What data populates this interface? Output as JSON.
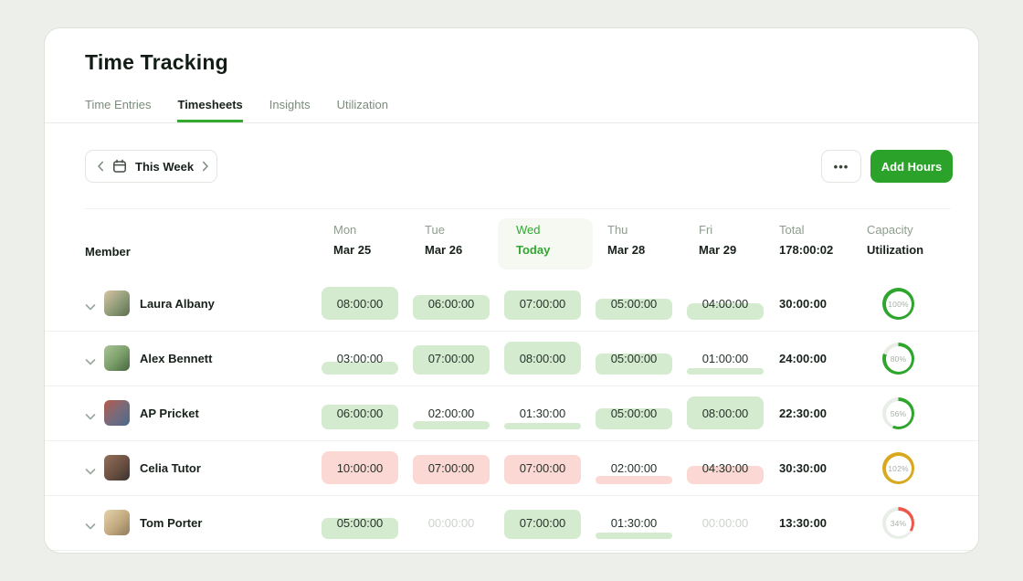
{
  "page": {
    "title": "Time Tracking"
  },
  "tabs": [
    {
      "label": "Time Entries",
      "active": false
    },
    {
      "label": "Timesheets",
      "active": true
    },
    {
      "label": "Insights",
      "active": false
    },
    {
      "label": "Utilization",
      "active": false
    }
  ],
  "toolbar": {
    "week_label": "This Week",
    "more_label": "•••",
    "add_hours_label": "Add Hours"
  },
  "colors": {
    "accent_green": "#2ba32b",
    "cell_green": "#d4ebcf",
    "cell_red": "#fbd8d3",
    "ring_green": "#2ea52c",
    "ring_gold": "#d8a81e",
    "ring_red": "#ee584b",
    "ring_track": "#e9ede8"
  },
  "table": {
    "member_header": "Member",
    "day_columns": [
      {
        "day": "Mon",
        "date": "Mar 25",
        "today": false
      },
      {
        "day": "Tue",
        "date": "Mar 26",
        "today": false
      },
      {
        "day": "Wed",
        "date": "Today",
        "today": true
      },
      {
        "day": "Thu",
        "date": "Mar 28",
        "today": false
      },
      {
        "day": "Fri",
        "date": "Mar 29",
        "today": false
      }
    ],
    "total_header": {
      "label": "Total",
      "value": "178:00:02"
    },
    "capacity_header": {
      "label": "Capacity",
      "value": "Utilization"
    },
    "rows": [
      {
        "name": "Laura Albany",
        "cells": [
          {
            "value": "08:00:00",
            "fill_percent": 100,
            "tone": "green"
          },
          {
            "value": "06:00:00",
            "fill_percent": 75,
            "tone": "green"
          },
          {
            "value": "07:00:00",
            "fill_percent": 87.5,
            "tone": "green"
          },
          {
            "value": "05:00:00",
            "fill_percent": 62.5,
            "tone": "green"
          },
          {
            "value": "04:00:00",
            "fill_percent": 50,
            "tone": "green"
          }
        ],
        "total": "30:00:00",
        "utilization": {
          "label": "100%",
          "percent": 100,
          "status": "ok"
        }
      },
      {
        "name": "Alex Bennett",
        "cells": [
          {
            "value": "03:00:00",
            "fill_percent": 37.5,
            "tone": "green"
          },
          {
            "value": "07:00:00",
            "fill_percent": 87.5,
            "tone": "green"
          },
          {
            "value": "08:00:00",
            "fill_percent": 100,
            "tone": "green"
          },
          {
            "value": "05:00:00",
            "fill_percent": 62.5,
            "tone": "green"
          },
          {
            "value": "01:00:00",
            "fill_percent": 12.5,
            "tone": "green"
          }
        ],
        "total": "24:00:00",
        "utilization": {
          "label": "80%",
          "percent": 80,
          "status": "ok"
        }
      },
      {
        "name": "AP Pricket",
        "cells": [
          {
            "value": "06:00:00",
            "fill_percent": 75,
            "tone": "green"
          },
          {
            "value": "02:00:00",
            "fill_percent": 25,
            "tone": "green"
          },
          {
            "value": "01:30:00",
            "fill_percent": 18.75,
            "tone": "green"
          },
          {
            "value": "05:00:00",
            "fill_percent": 62.5,
            "tone": "green"
          },
          {
            "value": "08:00:00",
            "fill_percent": 100,
            "tone": "green"
          }
        ],
        "total": "22:30:00",
        "utilization": {
          "label": "56%",
          "percent": 56,
          "status": "ok"
        }
      },
      {
        "name": "Celia Tutor",
        "cells": [
          {
            "value": "10:00:00",
            "fill_percent": 100,
            "tone": "red"
          },
          {
            "value": "07:00:00",
            "fill_percent": 87.5,
            "tone": "red"
          },
          {
            "value": "07:00:00",
            "fill_percent": 87.5,
            "tone": "red"
          },
          {
            "value": "02:00:00",
            "fill_percent": 25,
            "tone": "red"
          },
          {
            "value": "04:30:00",
            "fill_percent": 56.25,
            "tone": "red"
          }
        ],
        "total": "30:30:00",
        "utilization": {
          "label": "102%",
          "percent": 102,
          "status": "over"
        }
      },
      {
        "name": "Tom Porter",
        "cells": [
          {
            "value": "05:00:00",
            "fill_percent": 62.5,
            "tone": "green"
          },
          {
            "value": "00:00:00",
            "fill_percent": 0,
            "tone": "none"
          },
          {
            "value": "07:00:00",
            "fill_percent": 87.5,
            "tone": "green"
          },
          {
            "value": "01:30:00",
            "fill_percent": 18.75,
            "tone": "green"
          },
          {
            "value": "00:00:00",
            "fill_percent": 0,
            "tone": "none"
          }
        ],
        "total": "13:30:00",
        "utilization": {
          "label": "34%",
          "percent": 34,
          "status": "low"
        }
      }
    ]
  }
}
